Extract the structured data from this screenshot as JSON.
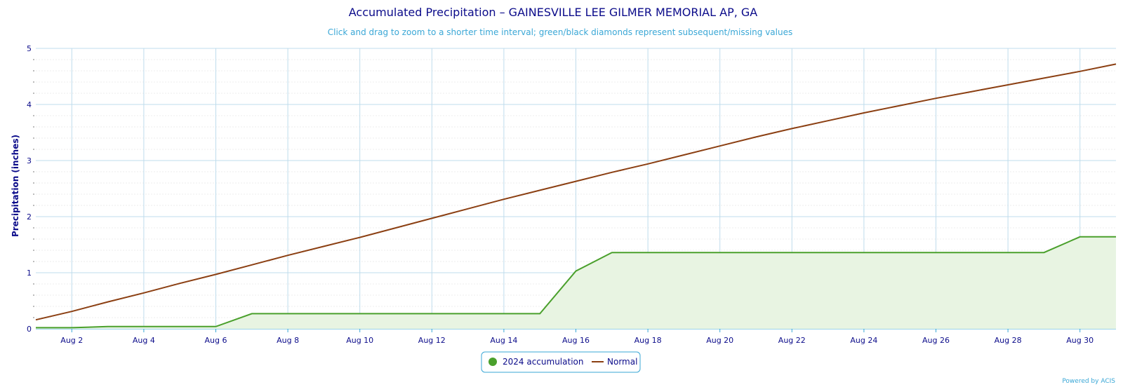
{
  "chart_data": {
    "type": "line",
    "title": "Accumulated Precipitation – GAINESVILLE LEE GILMER MEMORIAL AP, GA",
    "subtitle": "Click and drag to zoom to a shorter time interval; green/black diamonds represent subsequent/missing values",
    "ylabel": "Precipitation (inches)",
    "ylim": [
      0,
      5
    ],
    "yticks": [
      0,
      1,
      2,
      3,
      4,
      5
    ],
    "xlim": [
      1,
      31
    ],
    "xticks": [
      2,
      4,
      6,
      8,
      10,
      12,
      14,
      16,
      18,
      20,
      22,
      24,
      26,
      28,
      30
    ],
    "xtick_labels": [
      "Aug 2",
      "Aug 4",
      "Aug 6",
      "Aug 8",
      "Aug 10",
      "Aug 12",
      "Aug 14",
      "Aug 16",
      "Aug 18",
      "Aug 20",
      "Aug 22",
      "Aug 24",
      "Aug 26",
      "Aug 28",
      "Aug 30"
    ],
    "grid": true,
    "legend_position": "bottom-center",
    "series": [
      {
        "name": "2024 accumulation",
        "color": "#4aa02c",
        "fill": "#e8f4e2",
        "x": [
          1,
          2,
          3,
          4,
          5,
          6,
          7,
          8,
          9,
          10,
          11,
          12,
          13,
          14,
          15,
          16,
          17,
          18,
          19,
          20,
          21,
          22,
          23,
          24,
          25,
          26,
          27,
          28,
          29,
          30,
          31
        ],
        "values": [
          0.02,
          0.02,
          0.04,
          0.04,
          0.04,
          0.04,
          0.27,
          0.27,
          0.27,
          0.27,
          0.27,
          0.27,
          0.27,
          0.27,
          0.27,
          1.03,
          1.36,
          1.36,
          1.36,
          1.36,
          1.36,
          1.36,
          1.36,
          1.36,
          1.36,
          1.36,
          1.36,
          1.36,
          1.36,
          1.64,
          1.64
        ]
      },
      {
        "name": "Normal",
        "color": "#8b3f12",
        "x": [
          1,
          2,
          3,
          4,
          5,
          6,
          7,
          8,
          9,
          10,
          11,
          12,
          13,
          14,
          15,
          16,
          17,
          18,
          19,
          20,
          21,
          22,
          23,
          24,
          25,
          26,
          27,
          28,
          29,
          30,
          31
        ],
        "values": [
          0.16,
          0.31,
          0.48,
          0.64,
          0.81,
          0.97,
          1.14,
          1.31,
          1.47,
          1.63,
          1.8,
          1.97,
          2.14,
          2.31,
          2.47,
          2.63,
          2.79,
          2.94,
          3.1,
          3.26,
          3.42,
          3.57,
          3.71,
          3.85,
          3.98,
          4.11,
          4.23,
          4.35,
          4.47,
          4.59,
          4.72
        ]
      }
    ]
  },
  "credit": "Powered by ACIS"
}
